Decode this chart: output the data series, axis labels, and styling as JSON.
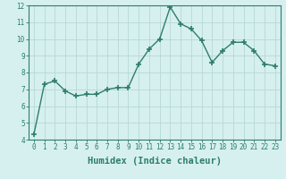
{
  "x": [
    0,
    1,
    2,
    3,
    4,
    5,
    6,
    7,
    8,
    9,
    10,
    11,
    12,
    13,
    14,
    15,
    16,
    17,
    18,
    19,
    20,
    21,
    22,
    23
  ],
  "y": [
    4.3,
    7.3,
    7.5,
    6.9,
    6.6,
    6.7,
    6.7,
    7.0,
    7.1,
    7.1,
    8.5,
    9.4,
    10.0,
    11.9,
    10.9,
    10.6,
    9.9,
    8.6,
    9.3,
    9.8,
    9.8,
    9.3,
    8.5,
    8.4
  ],
  "line_color": "#2e7d6e",
  "marker": "+",
  "marker_size": 4.0,
  "marker_lw": 1.2,
  "line_width": 1.0,
  "bg_color": "#d6f0ef",
  "grid_color": "#b8d8d4",
  "xlabel": "Humidex (Indice chaleur)",
  "xlim": [
    -0.5,
    23.5
  ],
  "ylim": [
    4,
    12
  ],
  "yticks": [
    4,
    5,
    6,
    7,
    8,
    9,
    10,
    11,
    12
  ],
  "xticks": [
    0,
    1,
    2,
    3,
    4,
    5,
    6,
    7,
    8,
    9,
    10,
    11,
    12,
    13,
    14,
    15,
    16,
    17,
    18,
    19,
    20,
    21,
    22,
    23
  ],
  "tick_label_size": 5.5,
  "xlabel_size": 7.5,
  "tick_color": "#2e7d6e",
  "spine_color": "#2e7d6e"
}
